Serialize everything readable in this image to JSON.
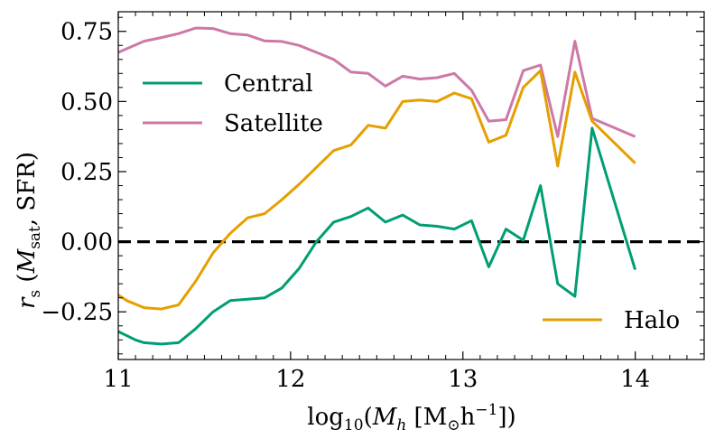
{
  "chart_data": {
    "type": "line",
    "xlabel": "log10(Mh [M⊙h⁻¹])",
    "ylabel": "rs (Msat, SFR)",
    "xlim": [
      11.0,
      14.4
    ],
    "ylim": [
      -0.42,
      0.82
    ],
    "x_ticks": [
      11,
      12,
      13,
      14
    ],
    "y_ticks": [
      -0.25,
      0.0,
      0.25,
      0.5,
      0.75
    ],
    "x_tick_labels": [
      "11",
      "12",
      "13",
      "14"
    ],
    "y_tick_labels": [
      "−0.25",
      "0.00",
      "0.25",
      "0.50",
      "0.75"
    ],
    "reference_line": {
      "y": 0.0,
      "style": "dashed",
      "color": "#000000"
    },
    "legend": [
      {
        "text": "Central",
        "color": "#009e73",
        "position": "upper-left"
      },
      {
        "text": "Satellite",
        "color": "#cc79a7",
        "position": "upper-left"
      },
      {
        "text": "Halo",
        "color": "#e69f00",
        "position": "lower-right"
      }
    ],
    "series": [
      {
        "name": "Central",
        "color": "#009e73",
        "x": [
          11.0,
          11.1,
          11.15,
          11.25,
          11.35,
          11.45,
          11.55,
          11.65,
          11.75,
          11.85,
          11.95,
          12.05,
          12.15,
          12.25,
          12.35,
          12.45,
          12.55,
          12.65,
          12.75,
          12.85,
          12.95,
          13.05,
          13.15,
          13.25,
          13.35,
          13.45,
          13.55,
          13.65,
          13.75,
          14.0
        ],
        "y": [
          -0.32,
          -0.35,
          -0.36,
          -0.365,
          -0.36,
          -0.31,
          -0.25,
          -0.21,
          -0.205,
          -0.2,
          -0.165,
          -0.095,
          0.0,
          0.07,
          0.09,
          0.12,
          0.07,
          0.095,
          0.06,
          0.055,
          0.045,
          0.075,
          -0.09,
          0.045,
          0.005,
          0.2,
          -0.15,
          -0.195,
          0.405,
          -0.1
        ]
      },
      {
        "name": "Satellite",
        "color": "#cc79a7",
        "x": [
          11.0,
          11.15,
          11.25,
          11.35,
          11.45,
          11.55,
          11.65,
          11.75,
          11.85,
          11.95,
          12.05,
          12.15,
          12.25,
          12.35,
          12.45,
          12.55,
          12.65,
          12.75,
          12.85,
          12.95,
          13.05,
          13.15,
          13.25,
          13.35,
          13.45,
          13.55,
          13.65,
          13.75,
          14.0
        ],
        "y": [
          0.675,
          0.715,
          0.728,
          0.742,
          0.762,
          0.76,
          0.742,
          0.737,
          0.716,
          0.714,
          0.7,
          0.675,
          0.65,
          0.605,
          0.6,
          0.555,
          0.59,
          0.58,
          0.585,
          0.6,
          0.54,
          0.43,
          0.435,
          0.61,
          0.63,
          0.375,
          0.715,
          0.44,
          0.375
        ]
      },
      {
        "name": "Halo",
        "color": "#e69f00",
        "x": [
          11.0,
          11.05,
          11.15,
          11.25,
          11.35,
          11.45,
          11.55,
          11.65,
          11.75,
          11.85,
          11.95,
          12.05,
          12.15,
          12.25,
          12.35,
          12.45,
          12.55,
          12.65,
          12.75,
          12.85,
          12.95,
          13.05,
          13.15,
          13.25,
          13.35,
          13.45,
          13.55,
          13.65,
          13.75,
          14.0
        ],
        "y": [
          -0.19,
          -0.21,
          -0.235,
          -0.24,
          -0.225,
          -0.14,
          -0.04,
          0.03,
          0.085,
          0.1,
          0.15,
          0.205,
          0.265,
          0.325,
          0.345,
          0.415,
          0.405,
          0.5,
          0.505,
          0.5,
          0.53,
          0.51,
          0.355,
          0.38,
          0.55,
          0.61,
          0.27,
          0.605,
          0.43,
          0.28
        ]
      }
    ]
  }
}
